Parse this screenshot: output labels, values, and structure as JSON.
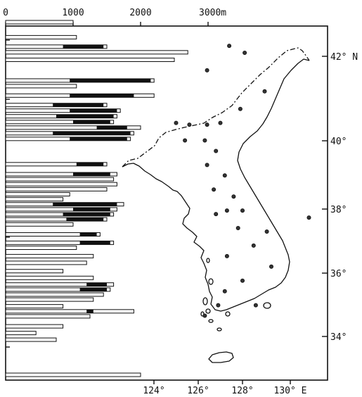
{
  "top_axis": {
    "ticks": [
      {
        "value": 0,
        "label": "0"
      },
      {
        "value": 1000,
        "label": "1000"
      },
      {
        "value": 2000,
        "label": "2000"
      },
      {
        "value": 3000,
        "label": "3000m"
      }
    ]
  },
  "latitude_ticks": [
    {
      "value": 42,
      "label": "42° N"
    },
    {
      "value": 40,
      "label": "40°"
    },
    {
      "value": 38,
      "label": "38°"
    },
    {
      "value": 36,
      "label": "36°"
    },
    {
      "value": 34,
      "label": "34°"
    }
  ],
  "longitude_ticks": [
    {
      "value": 124,
      "label": "124°"
    },
    {
      "value": 126,
      "label": "126°"
    },
    {
      "value": 128,
      "label": "128°"
    },
    {
      "value": 130,
      "label": "130° E"
    }
  ],
  "chart_data": {
    "type": "bar",
    "orientation": "horizontal",
    "x_unit": "m",
    "xlim": [
      0,
      3500
    ],
    "ylim": [
      33,
      43.2
    ],
    "series": [
      {
        "key": "open",
        "fill": "white",
        "values_note": "total bar length"
      },
      {
        "key": "dark",
        "fill": "black",
        "values_note": "dark segment"
      }
    ],
    "bars": [
      {
        "lat": 43.15,
        "total": 1000
      },
      {
        "lat": 42.75,
        "total": 1050
      },
      {
        "lat": 42.5,
        "total": 1500,
        "dark": [
          850,
          1450
        ]
      },
      {
        "lat": 42.35,
        "total": 2700
      },
      {
        "lat": 42.15,
        "total": 2500
      },
      {
        "lat": 41.6,
        "total": 2200,
        "dark": [
          950,
          2150
        ]
      },
      {
        "lat": 41.45,
        "total": 1050
      },
      {
        "lat": 41.2,
        "total": 2200,
        "dark": [
          950,
          1900
        ]
      },
      {
        "lat": 40.95,
        "total": 1500,
        "dark": [
          700,
          1450
        ]
      },
      {
        "lat": 40.8,
        "total": 1700,
        "dark": [
          950,
          1650
        ]
      },
      {
        "lat": 40.65,
        "total": 1650,
        "dark": [
          750,
          1600
        ]
      },
      {
        "lat": 40.5,
        "total": 1600,
        "dark": [
          1000,
          1550
        ]
      },
      {
        "lat": 40.35,
        "total": 2000,
        "dark": [
          1350,
          1800
        ]
      },
      {
        "lat": 40.2,
        "total": 1900,
        "dark": [
          700,
          1850
        ]
      },
      {
        "lat": 40.05,
        "total": 1850,
        "dark": [
          950,
          1800
        ]
      },
      {
        "lat": 39.3,
        "total": 1500,
        "dark": [
          1050,
          1450
        ]
      },
      {
        "lat": 39.0,
        "total": 1650,
        "dark": [
          1000,
          1550
        ]
      },
      {
        "lat": 38.85,
        "total": 1600
      },
      {
        "lat": 38.7,
        "total": 1650
      },
      {
        "lat": 38.55,
        "total": 1500
      },
      {
        "lat": 38.4,
        "total": 950
      },
      {
        "lat": 38.25,
        "total": 850
      },
      {
        "lat": 38.1,
        "total": 1750,
        "dark": [
          700,
          1650
        ]
      },
      {
        "lat": 37.95,
        "total": 1650,
        "dark": [
          1000,
          1550
        ]
      },
      {
        "lat": 37.8,
        "total": 1600,
        "dark": [
          850,
          1550
        ]
      },
      {
        "lat": 37.65,
        "total": 1500,
        "dark": [
          900,
          1450
        ]
      },
      {
        "lat": 37.5,
        "total": 1000
      },
      {
        "lat": 37.2,
        "total": 1400,
        "dark": [
          1100,
          1350
        ]
      },
      {
        "lat": 36.95,
        "total": 1600,
        "dark": [
          1100,
          1550
        ]
      },
      {
        "lat": 36.8,
        "total": 1050
      },
      {
        "lat": 36.55,
        "total": 1300
      },
      {
        "lat": 36.35,
        "total": 1200
      },
      {
        "lat": 36.1,
        "total": 850
      },
      {
        "lat": 35.9,
        "total": 1300
      },
      {
        "lat": 35.7,
        "total": 1600,
        "dark": [
          1200,
          1500
        ]
      },
      {
        "lat": 35.55,
        "total": 1550,
        "dark": [
          1100,
          1500
        ]
      },
      {
        "lat": 35.4,
        "total": 1450
      },
      {
        "lat": 35.25,
        "total": 1300
      },
      {
        "lat": 35.05,
        "total": 850
      },
      {
        "lat": 34.9,
        "total": 1900,
        "dark": [
          1200,
          1300
        ]
      },
      {
        "lat": 34.75,
        "total": 1250
      },
      {
        "lat": 34.45,
        "total": 850
      },
      {
        "lat": 34.25,
        "total": 450
      },
      {
        "lat": 34.05,
        "total": 750
      },
      {
        "lat": 33.0,
        "total": 2000
      }
    ]
  },
  "map": {
    "lon_range": [
      122.8,
      131.8
    ],
    "lat_range": [
      33.0,
      43.2
    ],
    "stations": [
      [
        126.4,
        41.6
      ],
      [
        129.0,
        41.0
      ],
      [
        127.9,
        40.5
      ],
      [
        125.0,
        40.1
      ],
      [
        125.6,
        40.05
      ],
      [
        126.4,
        40.05
      ],
      [
        127.0,
        40.1
      ],
      [
        125.4,
        39.6
      ],
      [
        126.3,
        39.6
      ],
      [
        126.8,
        39.3
      ],
      [
        126.4,
        38.9
      ],
      [
        127.2,
        38.6
      ],
      [
        126.7,
        38.2
      ],
      [
        127.6,
        38.0
      ],
      [
        127.3,
        37.6
      ],
      [
        128.0,
        37.6
      ],
      [
        126.8,
        37.5
      ],
      [
        127.8,
        37.1
      ],
      [
        129.1,
        37.0
      ],
      [
        128.5,
        36.6
      ],
      [
        127.3,
        36.3
      ],
      [
        129.3,
        36.0
      ],
      [
        128.0,
        35.6
      ],
      [
        127.2,
        35.3
      ],
      [
        126.9,
        34.9
      ],
      [
        128.6,
        34.9
      ],
      [
        126.3,
        34.6
      ],
      [
        131.0,
        37.4
      ],
      [
        127.4,
        42.3
      ],
      [
        128.1,
        42.1
      ]
    ]
  }
}
